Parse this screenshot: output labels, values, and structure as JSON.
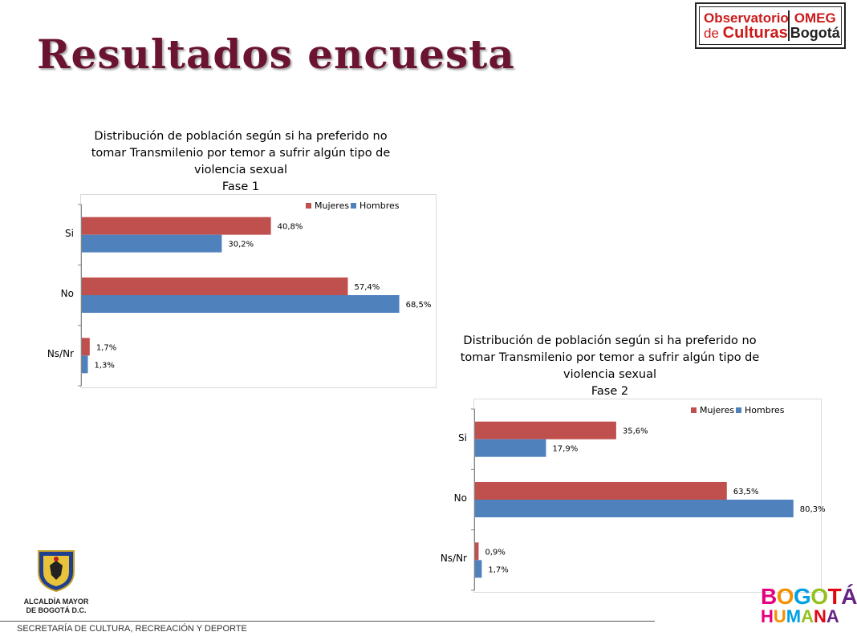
{
  "title": "Resultados encuesta",
  "logo_observatorio": {
    "line1": "Observatorio",
    "line2_prefix": "de",
    "line2_word": "Culturas",
    "omeg": "OMEG",
    "city": "Bogotá"
  },
  "footer": {
    "org": "SECRETARÍA DE CULTURA, RECREACIÓN Y DEPORTE",
    "crest_caption_line1": "ALCALDÍA MAYOR",
    "crest_caption_line2": "DE BOGOTÁ D.C."
  },
  "logo_bogota_humana": {
    "line1": "BOGOTÁ",
    "line2": "HUMANA"
  },
  "colors": {
    "title": "#6b1432",
    "mujeres": "#c0504d",
    "hombres": "#4f81bd"
  },
  "chart_data": [
    {
      "type": "bar",
      "orientation": "horizontal",
      "title_lines": [
        "Distribución de población según si ha preferido no",
        "tomar Transmilenio por temor a sufrir algún tipo de",
        "violencia sexual",
        "Fase 1"
      ],
      "categories": [
        "Si",
        "No",
        "Ns/Nr"
      ],
      "series": [
        {
          "name": "Mujeres",
          "values": [
            40.8,
            57.4,
            1.7
          ],
          "labels": [
            "40,8%",
            "57,4%",
            "1,7%"
          ]
        },
        {
          "name": "Hombres",
          "values": [
            30.2,
            68.5,
            1.3
          ],
          "labels": [
            "30,2%",
            "68,5%",
            "1,3%"
          ]
        }
      ],
      "xlim": [
        0,
        80
      ],
      "legend": "top-right",
      "grid": false
    },
    {
      "type": "bar",
      "orientation": "horizontal",
      "title_lines": [
        "Distribución de población según si ha preferido no",
        "tomar Transmilenio por temor a sufrir algún tipo de",
        "violencia sexual",
        "Fase 2"
      ],
      "categories": [
        "Si",
        "No",
        "Ns/Nr"
      ],
      "series": [
        {
          "name": "Mujeres",
          "values": [
            35.6,
            63.5,
            0.9
          ],
          "labels": [
            "35,6%",
            "63,5%",
            "0,9%"
          ]
        },
        {
          "name": "Hombres",
          "values": [
            17.9,
            80.3,
            1.7
          ],
          "labels": [
            "17,9%",
            "80,3%",
            "1,7%"
          ]
        }
      ],
      "xlim": [
        0,
        85
      ],
      "legend": "top-right",
      "grid": false
    }
  ]
}
